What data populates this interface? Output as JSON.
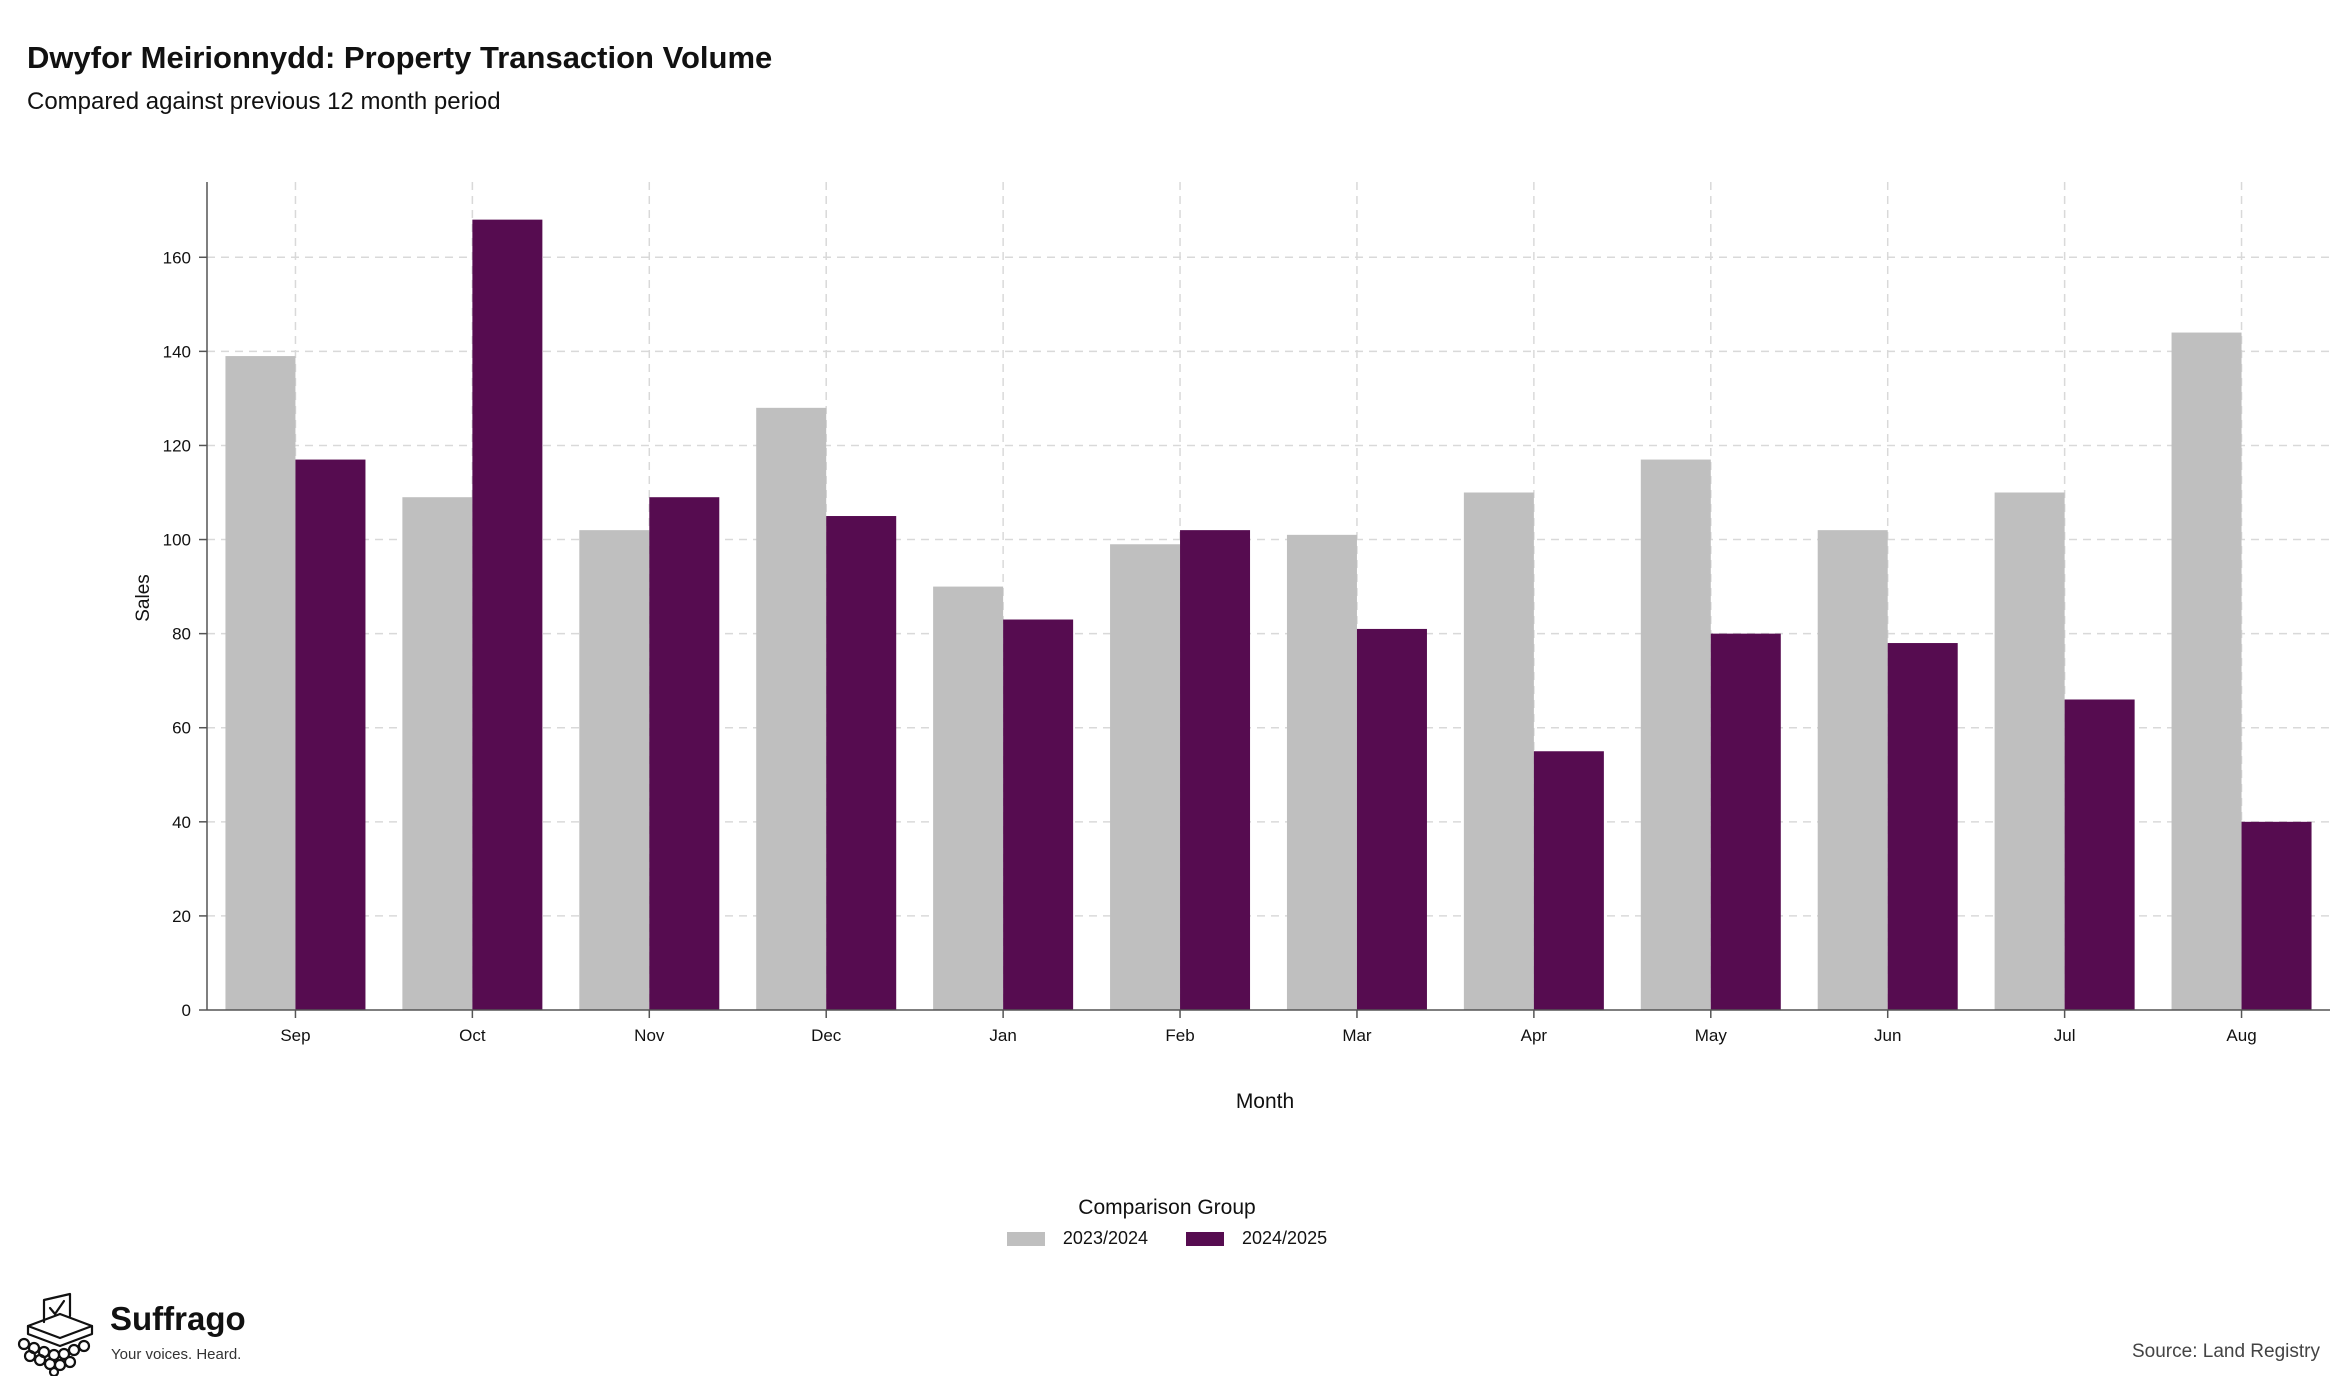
{
  "chart_data": {
    "type": "bar",
    "title": "Dwyfor Meirionnydd: Property Transaction Volume",
    "subtitle": "Compared against previous 12 month period",
    "xlabel": "Month",
    "ylabel": "Sales",
    "categories": [
      "Sep",
      "Oct",
      "Nov",
      "Dec",
      "Jan",
      "Feb",
      "Mar",
      "Apr",
      "May",
      "Jun",
      "Jul",
      "Aug"
    ],
    "series": [
      {
        "name": "2023/2024",
        "color": "#bfbfbf",
        "values": [
          139,
          109,
          102,
          128,
          90,
          99,
          101,
          110,
          117,
          102,
          110,
          144
        ]
      },
      {
        "name": "2024/2025",
        "color": "#560c50",
        "values": [
          117,
          168,
          109,
          105,
          83,
          102,
          81,
          55,
          80,
          78,
          66,
          40
        ]
      }
    ],
    "ylim": [
      0,
      176
    ],
    "yticks": [
      0,
      20,
      40,
      60,
      80,
      100,
      120,
      140,
      160
    ],
    "grid": true,
    "legend_title": "Comparison Group",
    "legend_position": "bottom"
  },
  "branding": {
    "logo_name": "Suffrago",
    "tagline": "Your voices. Heard.",
    "logo_icon": "ballot-box-icon"
  },
  "footer": {
    "source": "Source: Land Registry"
  }
}
